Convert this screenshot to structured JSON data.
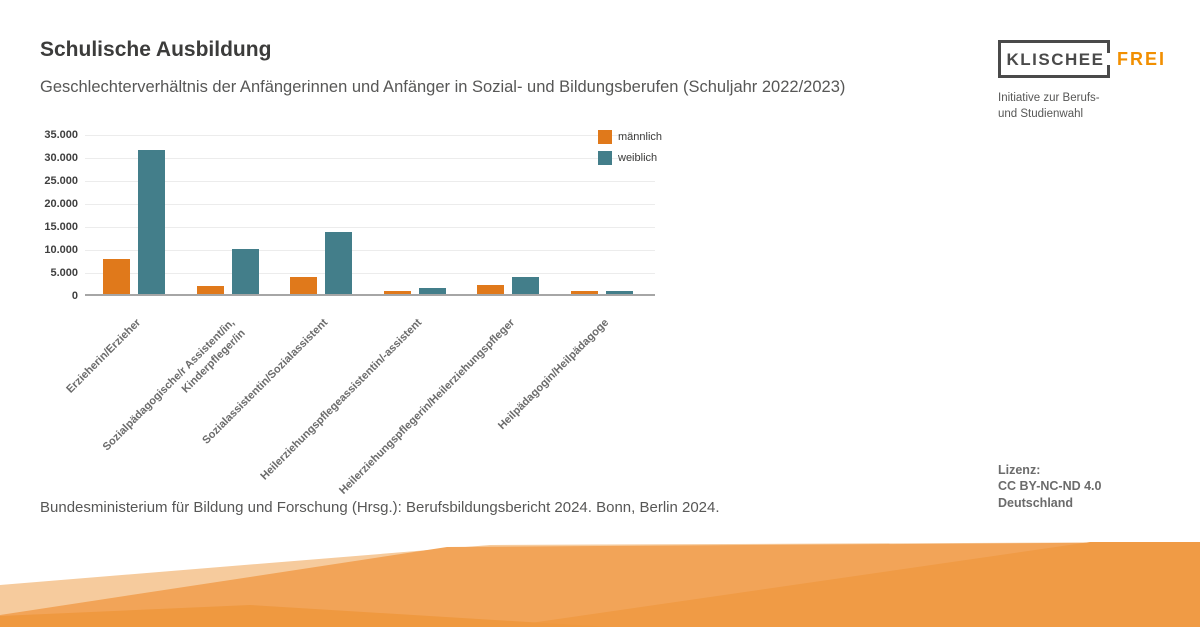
{
  "header": {
    "title": "Schulische Ausbildung",
    "subtitle": "Geschlechterverhältnis der Anfängerinnen und Anfänger in Sozial- und Bildungsberufen (Schuljahr 2022/2023)"
  },
  "logo": {
    "box_text": "KLISCHEE",
    "accent_text": "FREI",
    "tagline_line1": "Initiative zur Berufs-",
    "tagline_line2": "und Studienwahl",
    "frame_color": "#4a4a4a",
    "accent_color": "#f18f01"
  },
  "source_line": "Bundesministerium für Bildung und Forschung (Hrsg.): Berufsbildungsbericht 2024. Bonn, Berlin 2024.",
  "license": {
    "label": "Lizenz:",
    "line1": "CC BY-NC-ND 4.0",
    "line2": "Deutschland"
  },
  "chart_data": {
    "type": "bar",
    "title": "",
    "categories": [
      "Erzieherin/Erzieher",
      "Sozialpädagogische/r Assistent/in,\nKinderpfleger/in",
      "Sozialassistentin/Sozialassistent",
      "Heilerziehungspflegeassistentin/-assistent",
      "Heilerziehungspflegerin/Heilerziehungspfleger",
      "Heilpädagogin/Heilpädagoge"
    ],
    "series": [
      {
        "name": "männlich",
        "color": "#e0791b",
        "values": [
          7600,
          1700,
          3800,
          700,
          2000,
          700
        ]
      },
      {
        "name": "weiblich",
        "color": "#437e8a",
        "values": [
          31200,
          9700,
          13400,
          1200,
          3700,
          600
        ]
      }
    ],
    "ylim": [
      0,
      35000
    ],
    "yticks": {
      "values": [
        35000,
        30000,
        25000,
        20000,
        15000,
        10000,
        5000,
        0
      ],
      "labels": [
        "35.000",
        "30.000",
        "25.000",
        "20.000",
        "15.000",
        "10.000",
        "5.000",
        "0"
      ]
    },
    "grid": "horizontal",
    "legend_position": "top-right",
    "baseline_color": "#a6a6a6",
    "gridline_color": "#ececec"
  },
  "deco_colors": {
    "peach": "#f6cb9d",
    "light_orange": "#f2a458",
    "orange": "#f09b45",
    "dark_orange": "#ef9940"
  }
}
